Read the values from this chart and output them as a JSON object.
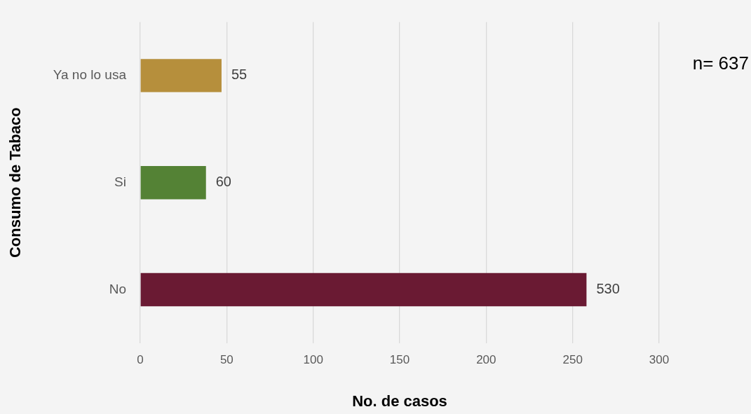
{
  "chart_data": {
    "type": "bar",
    "orientation": "horizontal",
    "categories": [
      "Ya no lo usa",
      "Si",
      "No"
    ],
    "values": [
      47,
      38,
      258
    ],
    "colors": [
      "#b68f3c",
      "#548235",
      "#6a1a33"
    ],
    "xlabel": "No. de casos",
    "ylabel": "Consumo de Tabaco",
    "xlim": [
      0,
      300
    ],
    "xticks": [
      0,
      50,
      100,
      150,
      200,
      250,
      300
    ],
    "grid": "x",
    "legend": false,
    "annotations": [
      "n= 637",
      {
        "text": "55",
        "x": 47,
        "y": "Ya no lo usa"
      },
      {
        "text": "60",
        "x": 38,
        "y": "Si"
      },
      {
        "text": "530",
        "x": 258,
        "y": "No"
      }
    ]
  }
}
